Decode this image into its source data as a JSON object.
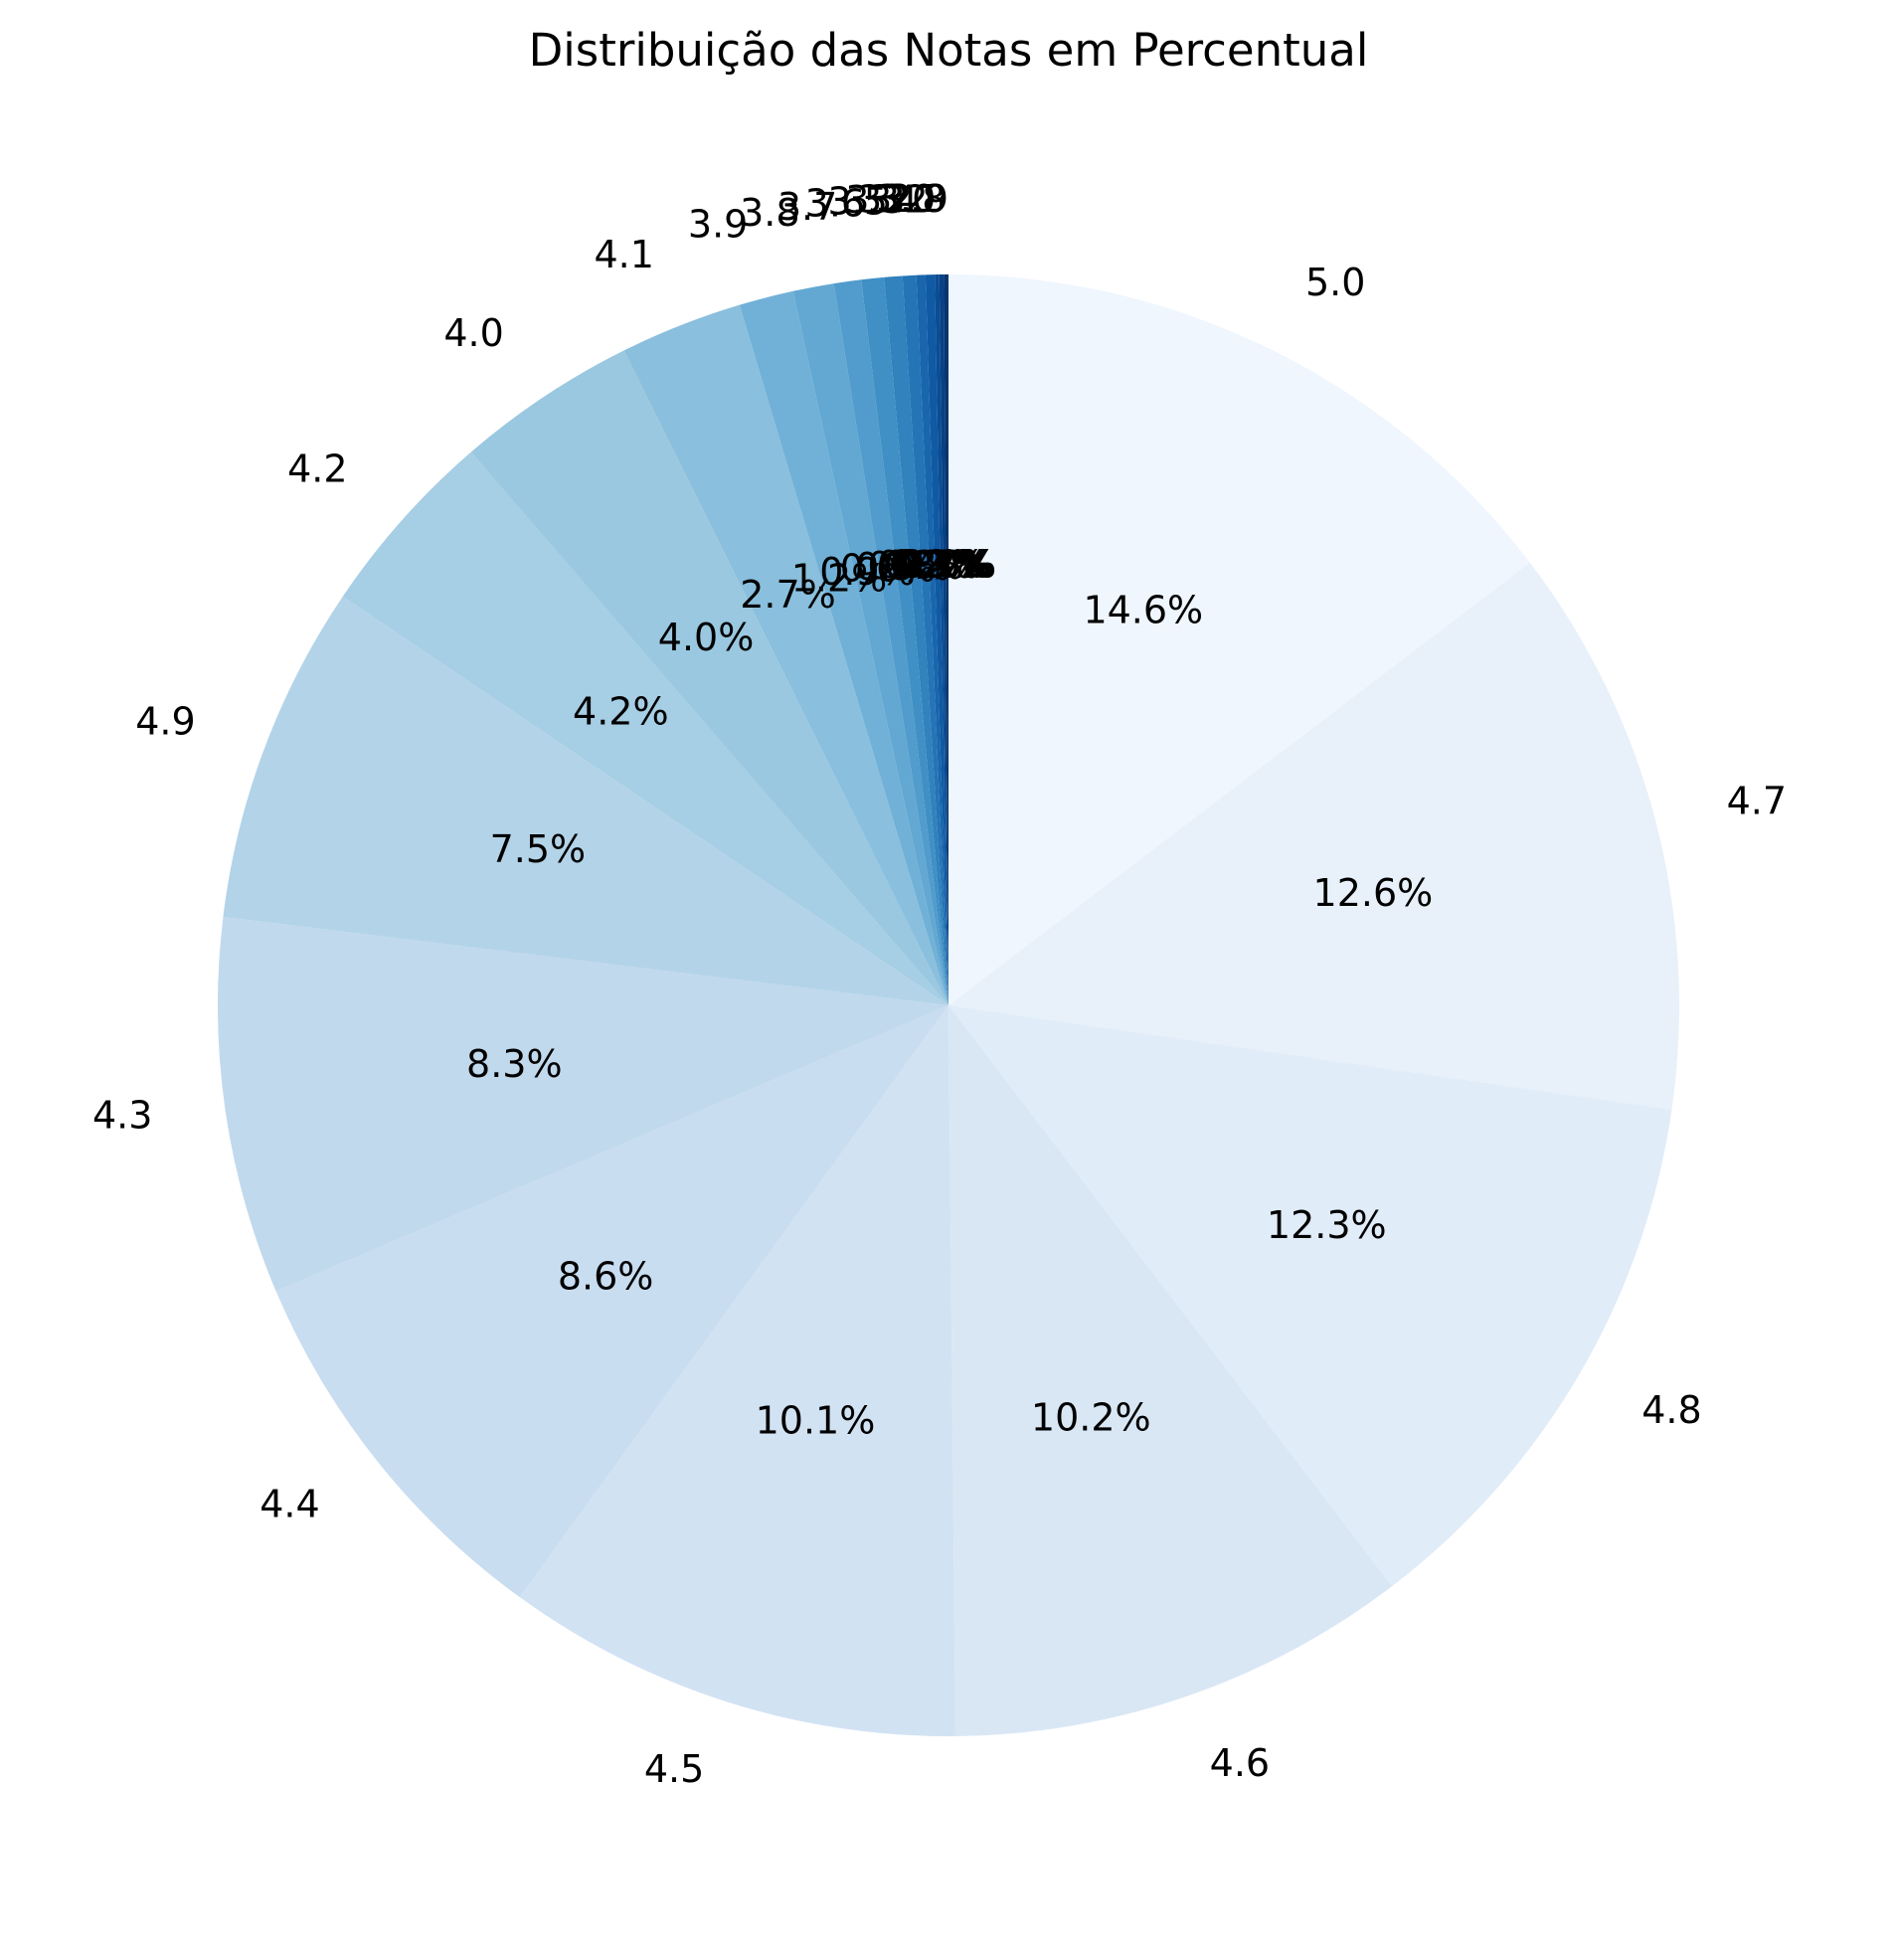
{
  "chart_data": {
    "type": "pie",
    "title": "Distribuição das Notas em Percentual",
    "start_angle_deg": 90,
    "direction": "clockwise",
    "label_format": "{pct:.1f}%",
    "colormap": "Blues (light to dark)",
    "slices": [
      {
        "label": "5.0",
        "percent": 14.6,
        "pct_label": "14.6%",
        "color": "#eff6fd"
      },
      {
        "label": "4.7",
        "percent": 12.6,
        "pct_label": "12.6%",
        "color": "#e8f1fa"
      },
      {
        "label": "4.8",
        "percent": 12.3,
        "pct_label": "12.3%",
        "color": "#e0ecf8"
      },
      {
        "label": "4.6",
        "percent": 10.2,
        "pct_label": "10.2%",
        "color": "#d9e7f5"
      },
      {
        "label": "4.5",
        "percent": 10.1,
        "pct_label": "10.1%",
        "color": "#d1e2f3"
      },
      {
        "label": "4.4",
        "percent": 8.6,
        "pct_label": "8.6%",
        "color": "#c9ddf0"
      },
      {
        "label": "4.3",
        "percent": 8.3,
        "pct_label": "8.3%",
        "color": "#c1d9ed"
      },
      {
        "label": "4.9",
        "percent": 7.5,
        "pct_label": "7.5%",
        "color": "#b3d3e8"
      },
      {
        "label": "4.2",
        "percent": 4.2,
        "pct_label": "4.2%",
        "color": "#a6cee4"
      },
      {
        "label": "4.0",
        "percent": 4.0,
        "pct_label": "4.0%",
        "color": "#9ac8e0"
      },
      {
        "label": "4.1",
        "percent": 2.7,
        "pct_label": "2.7%",
        "color": "#8abfdd"
      },
      {
        "label": "3.9",
        "percent": 1.2,
        "pct_label": "1.2%",
        "color": "#71b1d7"
      },
      {
        "label": "3.8",
        "percent": 0.9,
        "pct_label": "0.9%",
        "color": "#62a8d2"
      },
      {
        "label": "3.7",
        "percent": 0.6,
        "pct_label": "0.6%",
        "color": "#519ccc"
      },
      {
        "label": "3.6",
        "percent": 0.5,
        "pct_label": "0.5%",
        "color": "#4090c5"
      },
      {
        "label": "3.5",
        "percent": 0.4,
        "pct_label": "0.4%",
        "color": "#3182bd"
      },
      {
        "label": "3.3",
        "percent": 0.3,
        "pct_label": "0.3%",
        "color": "#2574b6"
      },
      {
        "label": "3.4",
        "percent": 0.2,
        "pct_label": "0.2%",
        "color": "#1966ad"
      },
      {
        "label": "3.2",
        "percent": 0.2,
        "pct_label": "0.2%",
        "color": "#0f5aa3"
      },
      {
        "label": "3.0",
        "percent": 0.1,
        "pct_label": "0.1%",
        "color": "#0a4d94"
      },
      {
        "label": "3.1",
        "percent": 0.1,
        "pct_label": "0.1%",
        "color": "#084184"
      },
      {
        "label": "2.8",
        "percent": 0.1,
        "pct_label": "0.1%",
        "color": "#08356f"
      },
      {
        "label": "2.9",
        "percent": 0.0,
        "pct_label": "0.0%",
        "color": "#08306b"
      }
    ]
  }
}
